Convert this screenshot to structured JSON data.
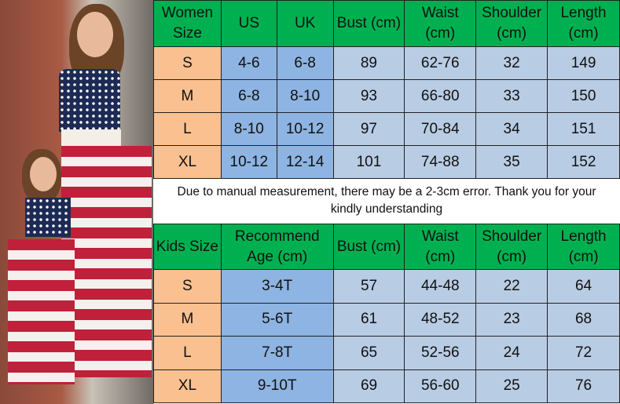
{
  "women_table": {
    "headers": [
      "Women Size",
      "US",
      "UK",
      "Bust (cm)",
      "Waist (cm)",
      "Shoulder (cm)",
      "Length (cm)"
    ],
    "rows": [
      [
        "S",
        "4-6",
        "6-8",
        "89",
        "62-76",
        "32",
        "149"
      ],
      [
        "M",
        "6-8",
        "8-10",
        "93",
        "66-80",
        "33",
        "150"
      ],
      [
        "L",
        "8-10",
        "10-12",
        "97",
        "70-84",
        "34",
        "151"
      ],
      [
        "XL",
        "10-12",
        "12-14",
        "101",
        "74-88",
        "35",
        "152"
      ]
    ]
  },
  "note": "Due to manual measurement, there may be a 2-3cm error. Thank you for your kindly understanding",
  "kids_table": {
    "headers": [
      "Kids Size",
      "Recommend Age (cm)",
      "Bust (cm)",
      "Waist (cm)",
      "Shoulder (cm)",
      "Length (cm)"
    ],
    "rows": [
      [
        "S",
        "3-4T",
        "57",
        "44-48",
        "22",
        "64"
      ],
      [
        "M",
        "5-6T",
        "61",
        "48-52",
        "23",
        "68"
      ],
      [
        "L",
        "7-8T",
        "65",
        "52-56",
        "24",
        "72"
      ],
      [
        "XL",
        "9-10T",
        "69",
        "56-60",
        "25",
        "76"
      ]
    ]
  },
  "colors": {
    "header": "#00b050",
    "size_col": "#fac090",
    "us_uk": "#8db4e2",
    "data": "#b8cce4"
  }
}
